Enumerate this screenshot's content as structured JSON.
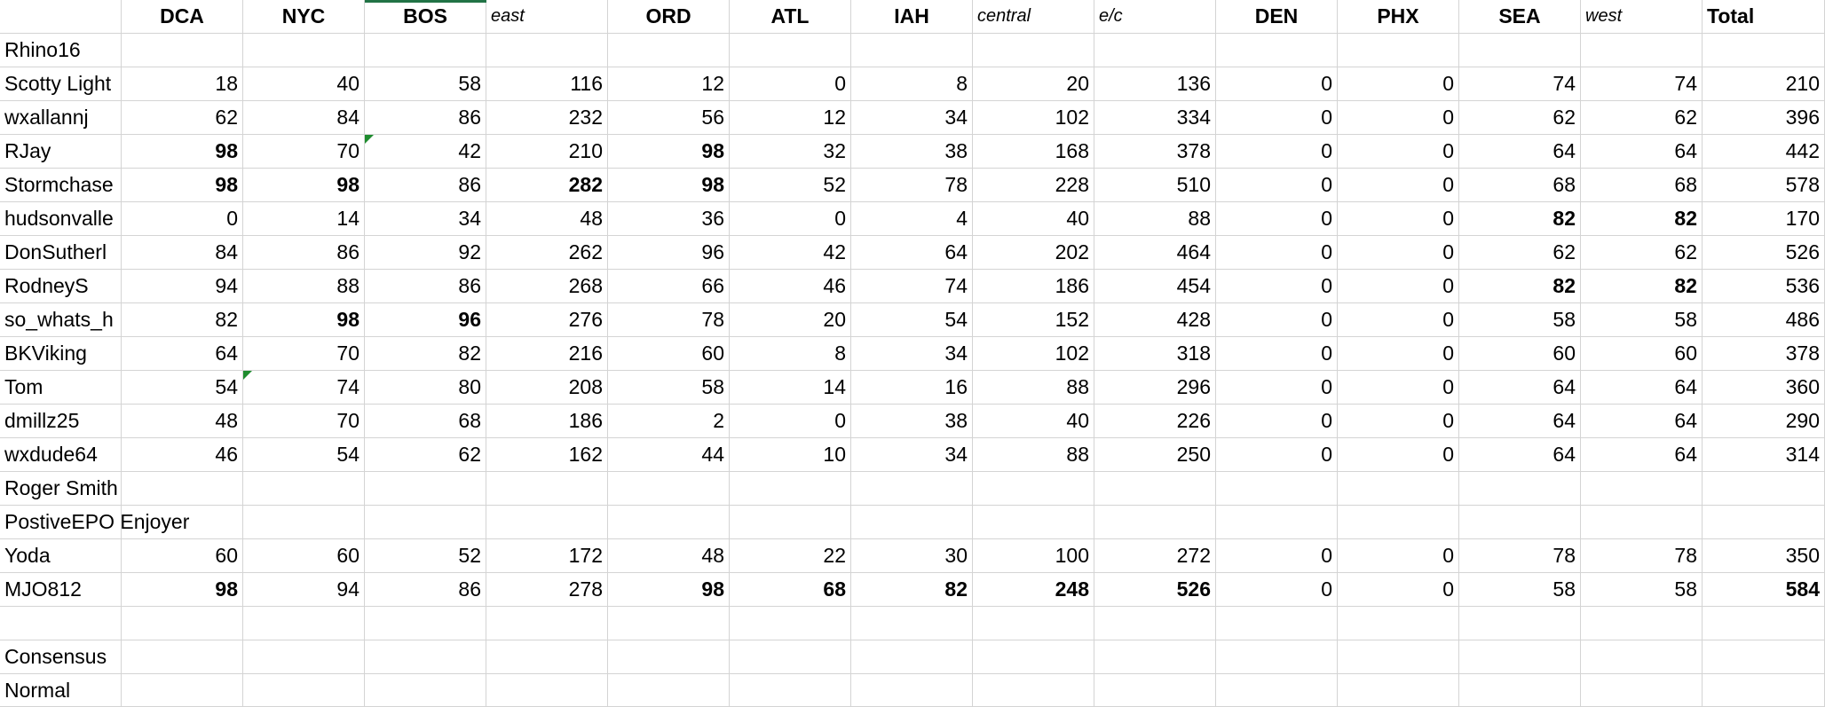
{
  "table": {
    "header": [
      "DCA",
      "NYC",
      "BOS",
      "east",
      "ORD",
      "ATL",
      "IAH",
      "central",
      "e/c",
      "DEN",
      "PHX",
      "SEA",
      "west",
      "Total"
    ],
    "italic_columns": [
      3,
      7,
      8,
      12
    ],
    "rows": [
      {
        "name": "Rhino16"
      },
      {
        "name": "Scotty Light",
        "cells": [
          18,
          40,
          58,
          116,
          12,
          0,
          8,
          20,
          136,
          0,
          0,
          74,
          74,
          210
        ],
        "bold": []
      },
      {
        "name": "wxallannj",
        "cells": [
          62,
          84,
          86,
          232,
          56,
          12,
          34,
          102,
          334,
          0,
          0,
          62,
          62,
          396
        ],
        "bold": []
      },
      {
        "name": "RJay",
        "cells": [
          98,
          70,
          42,
          210,
          98,
          32,
          38,
          168,
          378,
          0,
          0,
          64,
          64,
          442
        ],
        "bold": [
          0,
          4
        ]
      },
      {
        "name": "Stormchase",
        "cells": [
          98,
          98,
          86,
          282,
          98,
          52,
          78,
          228,
          510,
          0,
          0,
          68,
          68,
          578
        ],
        "bold": [
          0,
          1,
          3,
          4
        ]
      },
      {
        "name": "hudsonvalle",
        "cells": [
          0,
          14,
          34,
          48,
          36,
          0,
          4,
          40,
          88,
          0,
          0,
          82,
          82,
          170
        ],
        "bold": [
          11,
          12
        ]
      },
      {
        "name": "DonSutherl",
        "cells": [
          84,
          86,
          92,
          262,
          96,
          42,
          64,
          202,
          464,
          0,
          0,
          62,
          62,
          526
        ],
        "bold": []
      },
      {
        "name": "RodneyS",
        "cells": [
          94,
          88,
          86,
          268,
          66,
          46,
          74,
          186,
          454,
          0,
          0,
          82,
          82,
          536
        ],
        "bold": [
          11,
          12
        ]
      },
      {
        "name": "so_whats_h",
        "cells": [
          82,
          98,
          96,
          276,
          78,
          20,
          54,
          152,
          428,
          0,
          0,
          58,
          58,
          486
        ],
        "bold": [
          1,
          2
        ]
      },
      {
        "name": "BKViking",
        "cells": [
          64,
          70,
          82,
          216,
          60,
          8,
          34,
          102,
          318,
          0,
          0,
          60,
          60,
          378
        ],
        "bold": []
      },
      {
        "name": "Tom",
        "cells": [
          54,
          74,
          80,
          208,
          58,
          14,
          16,
          88,
          296,
          0,
          0,
          64,
          64,
          360
        ],
        "bold": []
      },
      {
        "name": "dmillz25",
        "cells": [
          48,
          70,
          68,
          186,
          2,
          0,
          38,
          40,
          226,
          0,
          0,
          64,
          64,
          290
        ],
        "bold": []
      },
      {
        "name": "wxdude64",
        "cells": [
          46,
          54,
          62,
          162,
          44,
          10,
          34,
          88,
          250,
          0,
          0,
          64,
          64,
          314
        ],
        "bold": []
      },
      {
        "name": "Roger Smith"
      },
      {
        "name": "PostiveEPO Enjoyer"
      },
      {
        "name": "Yoda",
        "cells": [
          60,
          60,
          52,
          172,
          48,
          22,
          30,
          100,
          272,
          0,
          0,
          78,
          78,
          350
        ],
        "bold": []
      },
      {
        "name": "MJO812",
        "cells": [
          98,
          94,
          86,
          278,
          98,
          68,
          82,
          248,
          526,
          0,
          0,
          58,
          58,
          584
        ],
        "bold": [
          0,
          4,
          5,
          6,
          7,
          8,
          13
        ]
      },
      {},
      {
        "name": "Consensus"
      },
      {
        "name": "Normal"
      }
    ]
  }
}
